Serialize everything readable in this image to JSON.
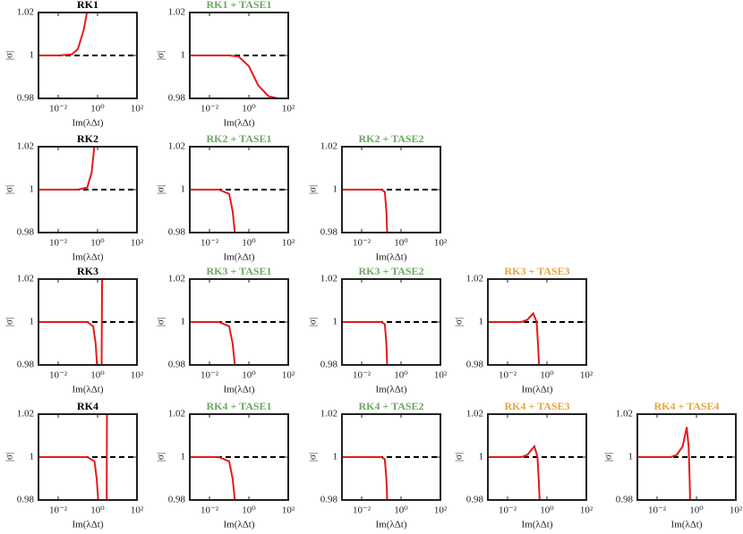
{
  "chart_data": [
    {
      "type": "line",
      "title": "RK1",
      "title_color": "#000000",
      "xlabel": "Im(λΔt)",
      "ylabel": "|σ|",
      "log_x": true,
      "xlim": [
        0.001,
        100
      ],
      "ylim": [
        0.98,
        1.02
      ],
      "xticks": [
        {
          "value": 0.01,
          "label": "10⁻²"
        },
        {
          "value": 1,
          "label": "10⁰"
        },
        {
          "value": 100,
          "label": "10²"
        }
      ],
      "yticks": [
        0.98,
        1,
        1.02
      ],
      "hline": 1,
      "series": [
        {
          "color": "#e41a1c",
          "x": [
            0.001,
            0.01,
            0.05,
            0.1,
            0.2,
            0.3
          ],
          "values": [
            1,
            1,
            1.0005,
            1.003,
            1.012,
            1.021
          ]
        }
      ]
    },
    {
      "type": "line",
      "title": "RK1 + TASE1",
      "title_color": "#6aa860",
      "xlabel": "Im(λΔt)",
      "ylabel": "|σ|",
      "log_x": true,
      "xlim": [
        0.001,
        100
      ],
      "ylim": [
        0.98,
        1.02
      ],
      "xticks": [
        {
          "value": 0.01,
          "label": "10⁻²"
        },
        {
          "value": 1,
          "label": "10⁰"
        },
        {
          "value": 100,
          "label": "10²"
        }
      ],
      "yticks": [
        0.98,
        1,
        1.02
      ],
      "hline": 1,
      "series": [
        {
          "color": "#e41a1c",
          "x": [
            0.001,
            0.1,
            0.3,
            1,
            3,
            10,
            30,
            100
          ],
          "values": [
            1,
            1,
            0.9995,
            0.995,
            0.986,
            0.981,
            0.98,
            0.98
          ]
        }
      ]
    },
    {
      "type": "line",
      "title": "RK2",
      "title_color": "#000000",
      "xlabel": "Im(λΔt)",
      "ylabel": "|σ|",
      "log_x": true,
      "xlim": [
        0.001,
        100
      ],
      "ylim": [
        0.98,
        1.02
      ],
      "xticks": [
        {
          "value": 0.01,
          "label": "10⁻²"
        },
        {
          "value": 1,
          "label": "10⁰"
        },
        {
          "value": 100,
          "label": "10²"
        }
      ],
      "yticks": [
        0.98,
        1,
        1.02
      ],
      "hline": 1,
      "series": [
        {
          "color": "#e41a1c",
          "x": [
            0.001,
            0.1,
            0.3,
            0.5,
            0.7
          ],
          "values": [
            1,
            1,
            1.001,
            1.008,
            1.021
          ]
        }
      ]
    },
    {
      "type": "line",
      "title": "RK2 + TASE1",
      "title_color": "#6aa860",
      "xlabel": "Im(λΔt)",
      "ylabel": "|σ|",
      "log_x": true,
      "xlim": [
        0.001,
        100
      ],
      "ylim": [
        0.98,
        1.02
      ],
      "xticks": [
        {
          "value": 0.01,
          "label": "10⁻²"
        },
        {
          "value": 1,
          "label": "10⁰"
        },
        {
          "value": 100,
          "label": "10²"
        }
      ],
      "yticks": [
        0.98,
        1,
        1.02
      ],
      "hline": 1,
      "series": [
        {
          "color": "#e41a1c",
          "x": [
            0.001,
            0.03,
            0.1,
            0.15,
            0.2
          ],
          "values": [
            1,
            1,
            0.998,
            0.99,
            0.979
          ]
        }
      ]
    },
    {
      "type": "line",
      "title": "RK2 + TASE2",
      "title_color": "#6aa860",
      "xlabel": "Im(λΔt)",
      "ylabel": "|σ|",
      "log_x": true,
      "xlim": [
        0.001,
        100
      ],
      "ylim": [
        0.98,
        1.02
      ],
      "xticks": [
        {
          "value": 0.01,
          "label": "10⁻²"
        },
        {
          "value": 1,
          "label": "10⁰"
        },
        {
          "value": 100,
          "label": "10²"
        }
      ],
      "yticks": [
        0.98,
        1,
        1.02
      ],
      "hline": 1,
      "series": [
        {
          "color": "#e41a1c",
          "x": [
            0.001,
            0.1,
            0.15,
            0.18,
            0.2
          ],
          "values": [
            1,
            1,
            0.999,
            0.99,
            0.979
          ]
        }
      ]
    },
    {
      "type": "line",
      "title": "RK3",
      "title_color": "#000000",
      "xlabel": "Im(λΔt)",
      "ylabel": "|σ|",
      "log_x": true,
      "xlim": [
        0.001,
        100
      ],
      "ylim": [
        0.98,
        1.02
      ],
      "xticks": [
        {
          "value": 0.01,
          "label": "10⁻²"
        },
        {
          "value": 1,
          "label": "10⁰"
        },
        {
          "value": 100,
          "label": "10²"
        }
      ],
      "yticks": [
        0.98,
        1,
        1.02
      ],
      "hline": 1,
      "series": [
        {
          "color": "#e41a1c",
          "x": [
            0.001,
            0.3,
            0.6,
            0.8,
            0.95,
            1.6,
            1.7
          ],
          "values": [
            1,
            1,
            0.998,
            0.99,
            0.979,
            0.979,
            1.021
          ]
        }
      ]
    },
    {
      "type": "line",
      "title": "RK3 + TASE1",
      "title_color": "#6aa860",
      "xlabel": "Im(λΔt)",
      "ylabel": "|σ|",
      "log_x": true,
      "xlim": [
        0.001,
        100
      ],
      "ylim": [
        0.98,
        1.02
      ],
      "xticks": [
        {
          "value": 0.01,
          "label": "10⁻²"
        },
        {
          "value": 1,
          "label": "10⁰"
        },
        {
          "value": 100,
          "label": "10²"
        }
      ],
      "yticks": [
        0.98,
        1,
        1.02
      ],
      "hline": 1,
      "series": [
        {
          "color": "#e41a1c",
          "x": [
            0.001,
            0.03,
            0.1,
            0.15,
            0.2
          ],
          "values": [
            1,
            1,
            0.998,
            0.99,
            0.979
          ]
        }
      ]
    },
    {
      "type": "line",
      "title": "RK3 + TASE2",
      "title_color": "#6aa860",
      "xlabel": "Im(λΔt)",
      "ylabel": "|σ|",
      "log_x": true,
      "xlim": [
        0.001,
        100
      ],
      "ylim": [
        0.98,
        1.02
      ],
      "xticks": [
        {
          "value": 0.01,
          "label": "10⁻²"
        },
        {
          "value": 1,
          "label": "10⁰"
        },
        {
          "value": 100,
          "label": "10²"
        }
      ],
      "yticks": [
        0.98,
        1,
        1.02
      ],
      "hline": 1,
      "series": [
        {
          "color": "#e41a1c",
          "x": [
            0.001,
            0.1,
            0.15,
            0.18,
            0.2
          ],
          "values": [
            1,
            1,
            0.999,
            0.99,
            0.979
          ]
        }
      ]
    },
    {
      "type": "line",
      "title": "RK3 + TASE3",
      "title_color": "#e8a33d",
      "xlabel": "Im(λΔt)",
      "ylabel": "|σ|",
      "log_x": true,
      "xlim": [
        0.001,
        100
      ],
      "ylim": [
        0.98,
        1.02
      ],
      "xticks": [
        {
          "value": 0.01,
          "label": "10⁻²"
        },
        {
          "value": 1,
          "label": "10⁰"
        },
        {
          "value": 100,
          "label": "10²"
        }
      ],
      "yticks": [
        0.98,
        1,
        1.02
      ],
      "hline": 1,
      "series": [
        {
          "color": "#e41a1c",
          "x": [
            0.001,
            0.05,
            0.1,
            0.2,
            0.3,
            0.35,
            0.4
          ],
          "values": [
            1,
            1,
            1.001,
            1.004,
            1,
            0.99,
            0.979
          ]
        }
      ]
    },
    {
      "type": "line",
      "title": "RK4",
      "title_color": "#000000",
      "xlabel": "Im(λΔt)",
      "ylabel": "|σ|",
      "log_x": true,
      "xlim": [
        0.001,
        100
      ],
      "ylim": [
        0.98,
        1.02
      ],
      "xticks": [
        {
          "value": 0.01,
          "label": "10⁻²"
        },
        {
          "value": 1,
          "label": "10⁰"
        },
        {
          "value": 100,
          "label": "10²"
        }
      ],
      "yticks": [
        0.98,
        1,
        1.02
      ],
      "hline": 1,
      "series": [
        {
          "color": "#e41a1c",
          "x": [
            0.001,
            0.3,
            0.7,
            0.9,
            1.1,
            2.9,
            3
          ],
          "values": [
            1,
            1,
            0.998,
            0.99,
            0.979,
            0.979,
            1.021
          ]
        }
      ]
    },
    {
      "type": "line",
      "title": "RK4 + TASE1",
      "title_color": "#6aa860",
      "xlabel": "Im(λΔt)",
      "ylabel": "|σ|",
      "log_x": true,
      "xlim": [
        0.001,
        100
      ],
      "ylim": [
        0.98,
        1.02
      ],
      "xticks": [
        {
          "value": 0.01,
          "label": "10⁻²"
        },
        {
          "value": 1,
          "label": "10⁰"
        },
        {
          "value": 100,
          "label": "10²"
        }
      ],
      "yticks": [
        0.98,
        1,
        1.02
      ],
      "hline": 1,
      "series": [
        {
          "color": "#e41a1c",
          "x": [
            0.001,
            0.03,
            0.1,
            0.15,
            0.2
          ],
          "values": [
            1,
            1,
            0.998,
            0.99,
            0.979
          ]
        }
      ]
    },
    {
      "type": "line",
      "title": "RK4 + TASE2",
      "title_color": "#6aa860",
      "xlabel": "Im(λΔt)",
      "ylabel": "|σ|",
      "log_x": true,
      "xlim": [
        0.001,
        100
      ],
      "ylim": [
        0.98,
        1.02
      ],
      "xticks": [
        {
          "value": 0.01,
          "label": "10⁻²"
        },
        {
          "value": 1,
          "label": "10⁰"
        },
        {
          "value": 100,
          "label": "10²"
        }
      ],
      "yticks": [
        0.98,
        1,
        1.02
      ],
      "hline": 1,
      "series": [
        {
          "color": "#e41a1c",
          "x": [
            0.001,
            0.1,
            0.15,
            0.18,
            0.2
          ],
          "values": [
            1,
            1,
            0.999,
            0.99,
            0.979
          ]
        }
      ]
    },
    {
      "type": "line",
      "title": "RK4 + TASE3",
      "title_color": "#e8a33d",
      "xlabel": "Im(λΔt)",
      "ylabel": "|σ|",
      "log_x": true,
      "xlim": [
        0.001,
        100
      ],
      "ylim": [
        0.98,
        1.02
      ],
      "xticks": [
        {
          "value": 0.01,
          "label": "10⁻²"
        },
        {
          "value": 1,
          "label": "10⁰"
        },
        {
          "value": 100,
          "label": "10²"
        }
      ],
      "yticks": [
        0.98,
        1,
        1.02
      ],
      "hline": 1,
      "series": [
        {
          "color": "#e41a1c",
          "x": [
            0.001,
            0.05,
            0.1,
            0.23,
            0.33,
            0.38,
            0.43
          ],
          "values": [
            1,
            1,
            1.001,
            1.005,
            1,
            0.99,
            0.979
          ]
        }
      ]
    },
    {
      "type": "line",
      "title": "RK4 + TASE4",
      "title_color": "#e8a33d",
      "xlabel": "Im(λΔt)",
      "ylabel": "|σ|",
      "log_x": true,
      "xlim": [
        0.001,
        100
      ],
      "ylim": [
        0.98,
        1.02
      ],
      "xticks": [
        {
          "value": 0.01,
          "label": "10⁻²"
        },
        {
          "value": 1,
          "label": "10⁰"
        },
        {
          "value": 100,
          "label": "10²"
        }
      ],
      "yticks": [
        0.98,
        1,
        1.02
      ],
      "hline": 1,
      "series": [
        {
          "color": "#e41a1c",
          "x": [
            0.001,
            0.05,
            0.1,
            0.2,
            0.32,
            0.4,
            0.45,
            0.48
          ],
          "values": [
            1,
            1,
            1.001,
            1.005,
            1.014,
            1.005,
            0.99,
            0.979
          ]
        }
      ]
    }
  ]
}
